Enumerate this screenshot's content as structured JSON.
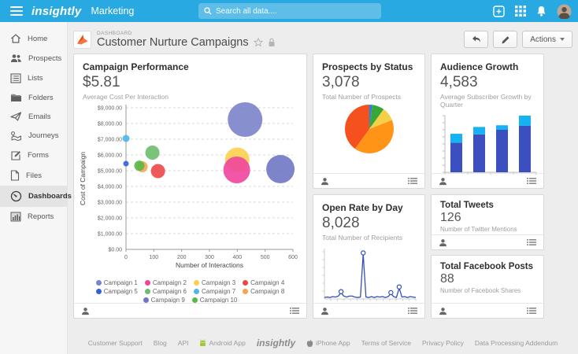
{
  "topbar": {
    "brand": "insightly",
    "app_name": "Marketing",
    "search_placeholder": "Search all data....",
    "bg_color": "#29a9e1"
  },
  "sidebar": {
    "items": [
      {
        "label": "Home",
        "icon": "home-icon"
      },
      {
        "label": "Prospects",
        "icon": "prospects-icon"
      },
      {
        "label": "Lists",
        "icon": "lists-icon"
      },
      {
        "label": "Folders",
        "icon": "folders-icon"
      },
      {
        "label": "Emails",
        "icon": "emails-icon"
      },
      {
        "label": "Journeys",
        "icon": "journeys-icon"
      },
      {
        "label": "Forms",
        "icon": "forms-icon"
      },
      {
        "label": "Files",
        "icon": "files-icon"
      },
      {
        "label": "Dashboards",
        "icon": "dashboards-icon",
        "active": true
      },
      {
        "label": "Reports",
        "icon": "reports-icon"
      }
    ]
  },
  "header": {
    "breadcrumb": "DASHBOARD",
    "title": "Customer Nurture Campaigns",
    "actions_label": "Actions"
  },
  "cards": {
    "campaign_performance": {
      "title": "Campaign Performance",
      "metric": "$5.81",
      "subtitle": "Average Cost Per Interaction"
    },
    "prospects_by_status": {
      "title": "Prospects by Status",
      "metric": "3,078",
      "subtitle": "Total Number of Prospects"
    },
    "audience_growth": {
      "title": "Audience Growth",
      "metric": "4,583",
      "subtitle": "Average Subscriber Growth by Quarter"
    },
    "open_rate_by_day": {
      "title": "Open Rate by Day",
      "metric": "8,028",
      "subtitle": "Total Number of Recipients"
    },
    "total_tweets": {
      "title": "Total Tweets",
      "metric": "126",
      "subtitle": "Number of Twitter Mentions"
    },
    "total_facebook_posts": {
      "title": "Total Facebook Posts",
      "metric": "88",
      "subtitle": "Number of Facebook Shares"
    }
  },
  "chart_data": [
    {
      "id": "campaign-performance-bubble",
      "type": "scatter",
      "title": "Campaign Performance",
      "xlabel": "Number of Interactions",
      "ylabel": "Cost of Campaign",
      "xlim": [
        0,
        600
      ],
      "ylim": [
        0,
        9000
      ],
      "x_ticks": [
        0,
        100,
        200,
        300,
        400,
        500,
        600
      ],
      "y_ticks": [
        "$0.00",
        "$1,000.00",
        "$2,000.00",
        "$3,000.00",
        "$4,000.00",
        "$5,000.00",
        "$6,000.00",
        "$7,000.00",
        "$8,000.00",
        "$9,000.00"
      ],
      "grid": "dashed-horizontal",
      "legend_position": "bottom",
      "series": [
        {
          "name": "Campaign 1",
          "color": "#7b83c9",
          "x": 428,
          "y": 8250,
          "r": 22,
          "z": 1
        },
        {
          "name": "Campaign 2",
          "color": "#f0459c",
          "x": 398,
          "y": 5050,
          "r": 17,
          "z": 4
        },
        {
          "name": "Campaign 3",
          "color": "#fccf4f",
          "x": 400,
          "y": 5700,
          "r": 15.5,
          "z": 3
        },
        {
          "name": "Campaign 4",
          "color": "#ee4748",
          "x": 115,
          "y": 4975,
          "r": 9,
          "z": 8
        },
        {
          "name": "Campaign 5",
          "color": "#2f63d8",
          "x": 0,
          "y": 5450,
          "r": 3.5,
          "z": 10
        },
        {
          "name": "Campaign 6",
          "color": "#6dbd6d",
          "x": 95,
          "y": 6150,
          "r": 9,
          "z": 7
        },
        {
          "name": "Campaign 7",
          "color": "#4eb6e8",
          "x": 0,
          "y": 7050,
          "r": 4.5,
          "z": 9
        },
        {
          "name": "Campaign 8",
          "color": "#f9a34f",
          "x": 58,
          "y": 5250,
          "r": 7,
          "z": 5
        },
        {
          "name": "Campaign 9",
          "color": "#6f77c4",
          "x": 555,
          "y": 5100,
          "r": 18,
          "z": 2
        },
        {
          "name": "Campaign 10",
          "color": "#57b847",
          "x": 48,
          "y": 5320,
          "r": 6.5,
          "z": 6
        }
      ]
    },
    {
      "id": "prospects-by-status-pie",
      "type": "pie",
      "slices": [
        {
          "value": 2,
          "color": "#1e88e5"
        },
        {
          "value": 8,
          "color": "#3aa63a"
        },
        {
          "value": 9,
          "color": "#f5cf45"
        },
        {
          "value": 41,
          "color": "#ff9416"
        },
        {
          "value": 40,
          "color": "#f4511e"
        }
      ],
      "start_angle_deg": -90,
      "direction": "clockwise"
    },
    {
      "id": "audience-growth-bars",
      "type": "bar",
      "stacked": true,
      "categories": [
        "",
        "",
        "",
        ""
      ],
      "ylim": [
        0,
        100
      ],
      "series": [
        {
          "name": "base",
          "color": "#3b4fc1",
          "values": [
            52,
            67,
            75,
            82
          ]
        },
        {
          "name": "growth",
          "color": "#16b2f2",
          "values": [
            16,
            13,
            8,
            18
          ]
        }
      ]
    },
    {
      "id": "open-rate-line",
      "type": "line",
      "color": "#3350b5",
      "ylim": [
        0,
        100
      ],
      "values": [
        3,
        4,
        3,
        5,
        4,
        6,
        13,
        6,
        4,
        6,
        6,
        4,
        3,
        4,
        95,
        4,
        3,
        5,
        3,
        5,
        4,
        5,
        3,
        5,
        11,
        5,
        3,
        23,
        4,
        5,
        3,
        5,
        4,
        3
      ],
      "markers": [
        6,
        14,
        24,
        27
      ]
    }
  ],
  "footer": {
    "links": [
      {
        "label": "Customer Support"
      },
      {
        "label": "Blog"
      },
      {
        "label": "API"
      },
      {
        "label": "Android App",
        "icon": "android-icon"
      },
      {
        "label": "insightly",
        "icon": "insightly-logo"
      },
      {
        "label": "iPhone App",
        "icon": "apple-icon"
      },
      {
        "label": "Terms of Service"
      },
      {
        "label": "Privacy Policy"
      },
      {
        "label": "Data Processing Addendum"
      }
    ]
  }
}
